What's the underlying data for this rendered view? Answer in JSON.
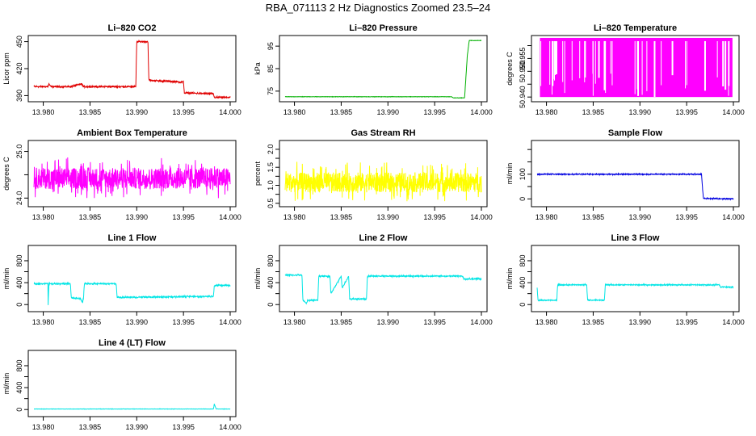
{
  "page_title": "RBA_071113  2 Hz Diagnostics Zoomed 23.5–24",
  "chart_data": [
    {
      "type": "line",
      "title": "Li–820 CO2",
      "ylabel": "Licor ppm",
      "color": "#e00000",
      "xlim": [
        13.979,
        14.0
      ],
      "ylim": [
        385,
        455
      ],
      "xticks": [
        13.98,
        13.985,
        13.99,
        13.995,
        14.0
      ],
      "xtick_labels": [
        "13.980",
        "13.985",
        "13.990",
        "13.995",
        "14.000"
      ],
      "yticks": [
        390,
        420,
        450
      ],
      "ytick_labels": [
        "390",
        "420",
        "450"
      ],
      "x": [
        13.979,
        13.9805,
        13.9806,
        13.9808,
        13.983,
        13.9841,
        13.9843,
        13.9899,
        13.99,
        13.9912,
        13.9913,
        13.995,
        13.9951,
        13.9982,
        13.9983,
        14.0
      ],
      "y": [
        400,
        400,
        403,
        400,
        400,
        403,
        400,
        400,
        450,
        450,
        407,
        405,
        393,
        392,
        388,
        388
      ],
      "noise": 1.2
    },
    {
      "type": "line",
      "title": "Li–820 Pressure",
      "ylabel": "kPa",
      "color": "#00b000",
      "xlim": [
        13.979,
        14.0
      ],
      "ylim": [
        71,
        99
      ],
      "xticks": [
        13.98,
        13.985,
        13.99,
        13.995,
        14.0
      ],
      "xtick_labels": [
        "13.980",
        "13.985",
        "13.990",
        "13.995",
        "14.000"
      ],
      "yticks": [
        75,
        85,
        95
      ],
      "ytick_labels": [
        "75",
        "85",
        "95"
      ],
      "x": [
        13.979,
        13.9968,
        13.997,
        13.9982,
        13.9985,
        13.9987,
        14.0
      ],
      "y": [
        72.5,
        72.5,
        72,
        72,
        91,
        97.5,
        97.5
      ],
      "noise": 0.1
    },
    {
      "type": "band",
      "title": "Li–820 Temperature",
      "ylabel": "degrees C",
      "color": "#ff00ff",
      "xlim": [
        13.979,
        14.0
      ],
      "ylim": [
        50.9388,
        50.9633
      ],
      "xticks": [
        13.98,
        13.985,
        13.99,
        13.995,
        14.0
      ],
      "xtick_labels": [
        "13.980",
        "13.985",
        "13.990",
        "13.995",
        "14.000"
      ],
      "yticks": [
        50.94,
        50.955
      ],
      "ytick_labels": [
        "50.940",
        "50.955"
      ],
      "yticks_minor": [
        50.945,
        50.95,
        50.96
      ],
      "ytick_labels_minor": [
        "",
        "50.950",
        ""
      ],
      "band_low": 50.94,
      "band_high": 50.963
    },
    {
      "type": "noise",
      "title": "Ambient Box Temperature",
      "ylabel": "degrees C",
      "color": "#ff00ff",
      "xlim": [
        13.979,
        14.0
      ],
      "ylim": [
        23.85,
        25.2
      ],
      "xticks": [
        13.98,
        13.985,
        13.99,
        13.995,
        14.0
      ],
      "xtick_labels": [
        "13.980",
        "13.985",
        "13.990",
        "13.995",
        "14.000"
      ],
      "yticks": [
        24.0,
        24.5,
        25.0
      ],
      "ytick_labels": [
        "24.0",
        "",
        "25.0"
      ],
      "center": 24.4,
      "spread": 0.45
    },
    {
      "type": "noise",
      "title": "Gas Stream RH",
      "ylabel": "percent",
      "color": "#ffff00",
      "xlim": [
        13.979,
        14.0
      ],
      "ylim": [
        0.45,
        2.2
      ],
      "xticks": [
        13.98,
        13.985,
        13.99,
        13.995,
        14.0
      ],
      "xtick_labels": [
        "13.980",
        "13.985",
        "13.990",
        "13.995",
        "14.000"
      ],
      "yticks": [
        0.5,
        1.0,
        1.5,
        2.0
      ],
      "ytick_labels": [
        "0.5",
        "1.0",
        "1.5",
        "2.0"
      ],
      "yticks_minor": [
        0.75,
        1.25,
        1.75
      ],
      "center": 1.05,
      "spread": 0.55
    },
    {
      "type": "line",
      "title": "Sample Flow",
      "ylabel": "ml/min",
      "color": "#0000e0",
      "xlim": [
        13.979,
        14.0
      ],
      "ylim": [
        -25,
        230
      ],
      "xticks": [
        13.98,
        13.985,
        13.99,
        13.995,
        14.0
      ],
      "xtick_labels": [
        "13.980",
        "13.985",
        "13.990",
        "13.995",
        "14.000"
      ],
      "yticks": [
        0,
        50,
        100,
        150,
        200
      ],
      "ytick_labels": [
        "0",
        "",
        "100",
        "",
        ""
      ],
      "x": [
        13.979,
        13.9966,
        13.9967,
        13.9968,
        14.0
      ],
      "y": [
        100,
        100,
        40,
        2,
        0
      ],
      "noise": 3
    },
    {
      "type": "line",
      "title": "Line 1 Flow",
      "ylabel": "ml/min",
      "color": "#00e5e5",
      "xlim": [
        13.979,
        14.0
      ],
      "ylim": [
        -100,
        1050
      ],
      "xticks": [
        13.98,
        13.985,
        13.99,
        13.995,
        14.0
      ],
      "xtick_labels": [
        "13.980",
        "13.985",
        "13.990",
        "13.995",
        "14.000"
      ],
      "yticks": [
        0,
        200,
        400,
        600,
        800
      ],
      "ytick_labels": [
        "0",
        "",
        "400",
        "",
        "800"
      ],
      "x": [
        13.979,
        13.9805,
        13.98051,
        13.9806,
        13.9829,
        13.983,
        13.984,
        13.9842,
        13.9843,
        13.9844,
        13.9878,
        13.9879,
        13.9982,
        13.9983,
        14.0
      ],
      "y": [
        380,
        380,
        -40,
        380,
        380,
        120,
        110,
        30,
        120,
        380,
        380,
        130,
        150,
        350,
        350
      ],
      "noise": 18
    },
    {
      "type": "line",
      "title": "Line 2 Flow",
      "ylabel": "ml/min",
      "color": "#00e5e5",
      "xlim": [
        13.979,
        14.0
      ],
      "ylim": [
        -100,
        1050
      ],
      "xticks": [
        13.98,
        13.985,
        13.99,
        13.995,
        14.0
      ],
      "xtick_labels": [
        "13.980",
        "13.985",
        "13.990",
        "13.995",
        "14.000"
      ],
      "yticks": [
        0,
        200,
        400,
        600,
        800
      ],
      "ytick_labels": [
        "0",
        "",
        "400",
        "",
        "800"
      ],
      "x": [
        13.979,
        13.9808,
        13.9809,
        13.9813,
        13.9814,
        13.9825,
        13.9826,
        13.9838,
        13.9839,
        13.985,
        13.9851,
        13.9858,
        13.9859,
        13.9877,
        13.9878,
        13.998,
        13.9981,
        14.0
      ],
      "y": [
        540,
        540,
        80,
        20,
        80,
        80,
        520,
        520,
        200,
        520,
        300,
        520,
        100,
        100,
        520,
        520,
        470,
        470
      ],
      "noise": 18
    },
    {
      "type": "line",
      "title": "Line 3 Flow",
      "ylabel": "ml/min",
      "color": "#00e5e5",
      "xlim": [
        13.979,
        14.0
      ],
      "ylim": [
        -100,
        1050
      ],
      "xticks": [
        13.98,
        13.985,
        13.99,
        13.995,
        14.0
      ],
      "xtick_labels": [
        "13.980",
        "13.985",
        "13.990",
        "13.995",
        "14.000"
      ],
      "yticks": [
        0,
        200,
        400,
        600,
        800
      ],
      "ytick_labels": [
        "0",
        "",
        "400",
        "",
        "800"
      ],
      "x": [
        13.979,
        13.9791,
        13.9792,
        13.9811,
        13.9812,
        13.9843,
        13.9844,
        13.9862,
        13.9863,
        13.9985,
        13.9986,
        14.0
      ],
      "y": [
        300,
        80,
        80,
        80,
        360,
        360,
        80,
        80,
        360,
        360,
        320,
        320
      ],
      "noise": 14
    },
    {
      "type": "line",
      "title": "Line 4 (LT) Flow",
      "ylabel": "ml/min",
      "color": "#00e5e5",
      "xlim": [
        13.979,
        14.0
      ],
      "ylim": [
        -100,
        1050
      ],
      "xticks": [
        13.98,
        13.985,
        13.99,
        13.995,
        14.0
      ],
      "xtick_labels": [
        "13.980",
        "13.985",
        "13.990",
        "13.995",
        "14.000"
      ],
      "yticks": [
        0,
        200,
        400,
        600,
        800
      ],
      "ytick_labels": [
        "0",
        "",
        "400",
        "",
        "800"
      ],
      "x": [
        13.979,
        13.9982,
        13.9983,
        13.9985,
        13.9986,
        14.0
      ],
      "y": [
        10,
        10,
        100,
        10,
        10,
        10
      ],
      "noise": 4
    }
  ]
}
